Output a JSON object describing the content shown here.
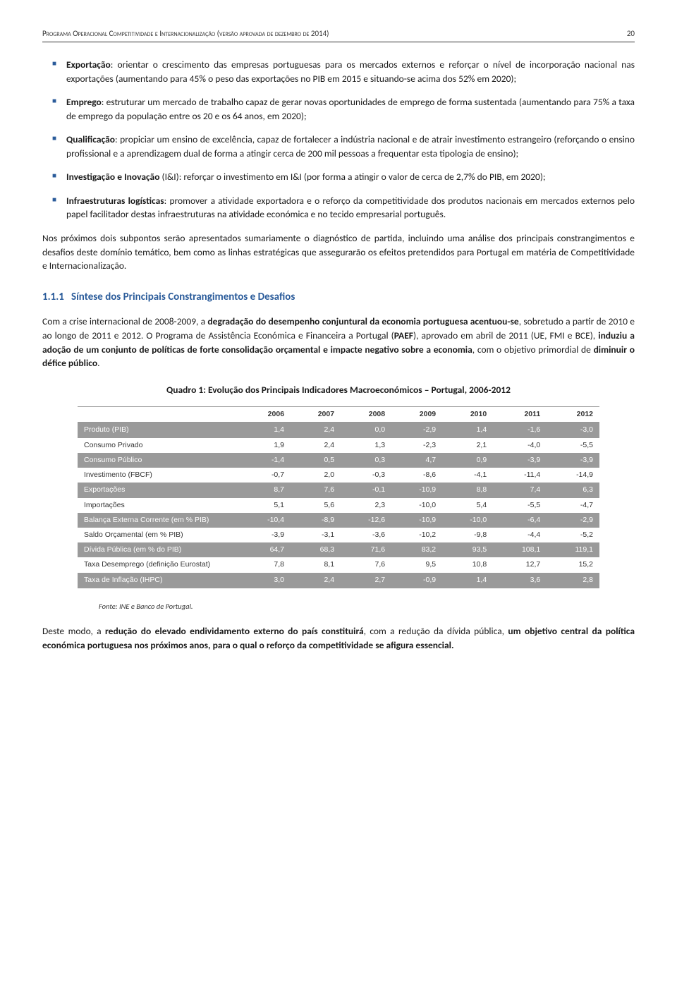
{
  "header": {
    "title": "Programa Operacional Competitividade e Internacionalização (versão aprovada de dezembro de 2014)",
    "page": "20"
  },
  "bullets": [
    {
      "label": "Exportação",
      "text": ": orientar o crescimento das empresas portuguesas para os mercados externos e reforçar o nível de incorporação nacional nas exportações (aumentando para 45% o peso das exportações no PIB em 2015 e situando-se acima dos 52% em 2020);"
    },
    {
      "label": "Emprego",
      "text": ": estruturar um mercado de trabalho capaz de gerar novas oportunidades de emprego de forma sustentada (aumentando para 75% a taxa de emprego da população entre os 20 e os 64 anos, em 2020);"
    },
    {
      "label": "Qualificação",
      "text": ": propiciar um ensino de excelência, capaz de fortalecer a indústria nacional e de atrair investimento estrangeiro (reforçando o ensino profissional e a aprendizagem dual de forma a atingir cerca de 200 mil pessoas a frequentar esta tipologia de ensino);"
    },
    {
      "label": "Investigação e Inovação",
      "text": " (I&I): reforçar o investimento em I&I (por forma a atingir o valor de cerca de 2,7% do PIB, em 2020);"
    },
    {
      "label": "Infraestruturas logísticas",
      "text": ": promover a atividade exportadora e o reforço da competitividade dos produtos nacionais em mercados externos pelo papel facilitador destas infraestruturas na atividade económica e no tecido empresarial português."
    }
  ],
  "para1": "Nos próximos dois subpontos serão apresentados sumariamente o diagnóstico de partida, incluindo uma análise dos principais constrangimentos e desafios deste domínio temático, bem como as linhas estratégicas que assegurarão os efeitos pretendidos para Portugal em matéria de Competitividade e Internacionalização.",
  "section": {
    "num": "1.1.1",
    "title": "Síntese dos Principais Constrangimentos e Desafios"
  },
  "para2_a": "Com a crise internacional de 2008-2009, a ",
  "para2_bold1": "degradação do desempenho conjuntural da economia portuguesa acentuou-se",
  "para2_b": ", sobretudo a partir de 2010 e ao longo de 2011 e 2012. O Programa de Assistência Económica e Financeira a Portugal (",
  "para2_bold2": "PAEF",
  "para2_c": "), aprovado em abril de 2011 (UE, FMI e BCE), ",
  "para2_bold3": "induziu a adoção de um conjunto de políticas de forte consolidação orçamental e impacte negativo sobre a economia",
  "para2_d": ", com o objetivo primordial de ",
  "para2_bold4": "diminuir o défice público",
  "para2_e": ".",
  "table": {
    "title": "Quadro 1: Evolução dos Principais Indicadores Macroeconómicos – Portugal, 2006-2012",
    "headers": [
      "",
      "2006",
      "2007",
      "2008",
      "2009",
      "2010",
      "2011",
      "2012"
    ],
    "rows": [
      {
        "class": "grey",
        "cells": [
          "Produto (PIB)",
          "1,4",
          "2,4",
          "0,0",
          "-2,9",
          "1,4",
          "-1,6",
          "-3,0"
        ]
      },
      {
        "class": "white",
        "cells": [
          "Consumo Privado",
          "1,9",
          "2,4",
          "1,3",
          "-2,3",
          "2,1",
          "-4,0",
          "-5,5"
        ]
      },
      {
        "class": "grey",
        "cells": [
          "Consumo Público",
          "-1,4",
          "0,5",
          "0,3",
          "4,7",
          "0,9",
          "-3,9",
          "-3,9"
        ]
      },
      {
        "class": "white",
        "cells": [
          "Investimento (FBCF)",
          "-0,7",
          "2,0",
          "-0,3",
          "-8,6",
          "-4,1",
          "-11,4",
          "-14,9"
        ]
      },
      {
        "class": "grey",
        "cells": [
          "Exportações",
          "8,7",
          "7,6",
          "-0,1",
          "-10,9",
          "8,8",
          "7,4",
          "6,3"
        ]
      },
      {
        "class": "white",
        "cells": [
          "Importações",
          "5,1",
          "5,6",
          "2,3",
          "-10,0",
          "5,4",
          "-5,5",
          "-4,7"
        ]
      },
      {
        "class": "grey",
        "cells": [
          "Balança Externa Corrente (em % PIB)",
          "-10,4",
          "-8,9",
          "-12,6",
          "-10,9",
          "-10,0",
          "-6,4",
          "-2,9"
        ]
      },
      {
        "class": "white",
        "cells": [
          "Saldo Orçamental (em % PIB)",
          "-3,9",
          "-3,1",
          "-3,6",
          "-10,2",
          "-9,8",
          "-4,4",
          "-5,2"
        ]
      },
      {
        "class": "grey",
        "cells": [
          "Dívida Pública (em % do PIB)",
          "64,7",
          "68,3",
          "71,6",
          "83,2",
          "93,5",
          "108,1",
          "119,1"
        ]
      },
      {
        "class": "white",
        "cells": [
          "Taxa Desemprego (definição Eurostat)",
          "7,8",
          "8,1",
          "7,6",
          "9,5",
          "10,8",
          "12,7",
          "15,2"
        ]
      },
      {
        "class": "grey",
        "cells": [
          "Taxa de Inflação (IHPC)",
          "3,0",
          "2,4",
          "2,7",
          "-0,9",
          "1,4",
          "3,6",
          "2,8"
        ]
      }
    ],
    "fonte": "Fonte: INE e Banco de Portugal."
  },
  "para3_a": "Deste modo, a ",
  "para3_bold1": "redução do elevado endividamento externo do país constituirá",
  "para3_b": ", com a redução da dívida pública, ",
  "para3_bold2": "um objetivo central da política económica portuguesa nos próximos anos, para o qual o reforço da competitividade se afigura essencial.",
  "colors": {
    "accent": "#2a5b9a",
    "grey_row": "#9a9a9a"
  }
}
